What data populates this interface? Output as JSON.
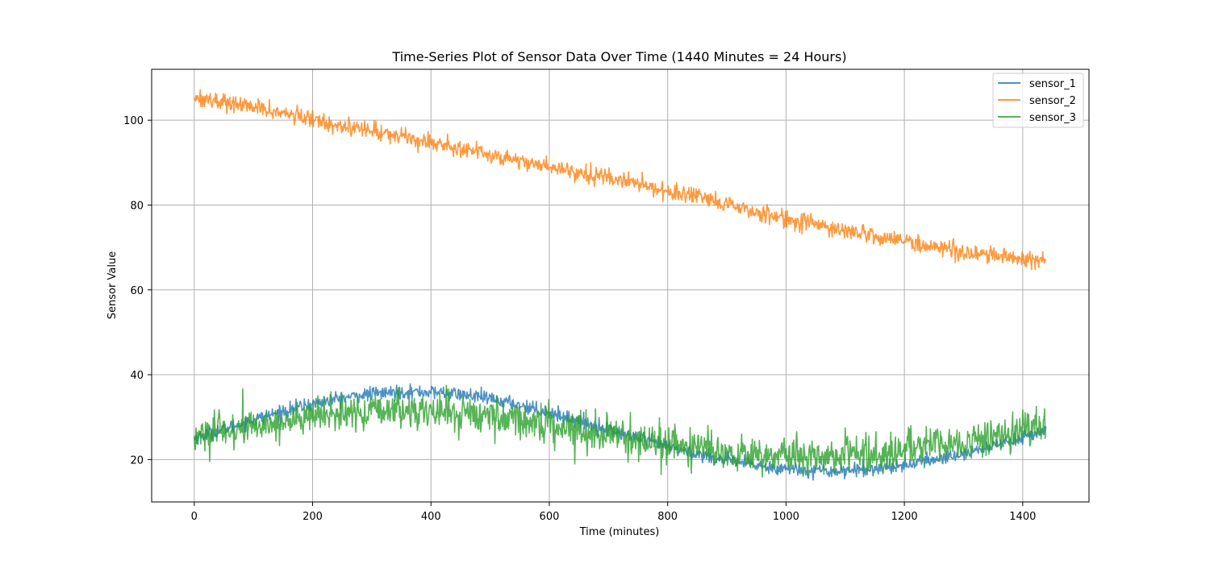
{
  "chart_data": {
    "type": "line",
    "title": "Time-Series Plot of Sensor Data Over Time (1440 Minutes = 24 Hours)",
    "xlabel": "Time (minutes)",
    "ylabel": "Sensor Value",
    "xlim": [
      -72,
      1512
    ],
    "ylim": [
      10,
      112
    ],
    "xticks": [
      0,
      200,
      400,
      600,
      800,
      1000,
      1200,
      1400
    ],
    "yticks": [
      20,
      40,
      60,
      80,
      100
    ],
    "grid": true,
    "legend_position": "top-right",
    "series": [
      {
        "name": "sensor_1",
        "color": "#1f77b4",
        "x": [
          0,
          60,
          120,
          180,
          240,
          300,
          360,
          420,
          480,
          540,
          600,
          660,
          720,
          780,
          840,
          900,
          960,
          1020,
          1080,
          1140,
          1200,
          1260,
          1320,
          1380,
          1439
        ],
        "y": [
          25.0,
          27.6,
          30.2,
          32.5,
          34.3,
          35.5,
          36.0,
          35.8,
          34.8,
          33.2,
          31.1,
          28.7,
          26.2,
          23.8,
          21.6,
          19.8,
          18.4,
          17.6,
          17.3,
          17.7,
          18.7,
          20.2,
          22.1,
          24.4,
          27.0
        ],
        "noise": 0.8
      },
      {
        "name": "sensor_2",
        "color": "#ff7f0e",
        "x": [
          0,
          120,
          240,
          360,
          480,
          600,
          720,
          840,
          960,
          1080,
          1200,
          1320,
          1439
        ],
        "y": [
          105.5,
          102.5,
          99.0,
          96.0,
          92.5,
          89.0,
          86.0,
          82.0,
          78.0,
          74.5,
          71.5,
          68.5,
          67.0
        ],
        "noise": 1.0
      },
      {
        "name": "sensor_3",
        "color": "#2ca02c",
        "x": [
          0,
          60,
          120,
          180,
          240,
          300,
          360,
          420,
          480,
          540,
          600,
          660,
          720,
          780,
          840,
          900,
          960,
          1020,
          1080,
          1140,
          1200,
          1260,
          1320,
          1380,
          1439
        ],
        "y": [
          25.5,
          26.8,
          28.3,
          29.6,
          30.6,
          31.3,
          31.5,
          31.3,
          30.6,
          29.6,
          28.3,
          26.9,
          25.4,
          24.0,
          22.8,
          21.8,
          21.2,
          20.9,
          21.0,
          21.4,
          22.2,
          23.3,
          24.6,
          26.0,
          27.6
        ],
        "noise": 2.1
      }
    ]
  }
}
